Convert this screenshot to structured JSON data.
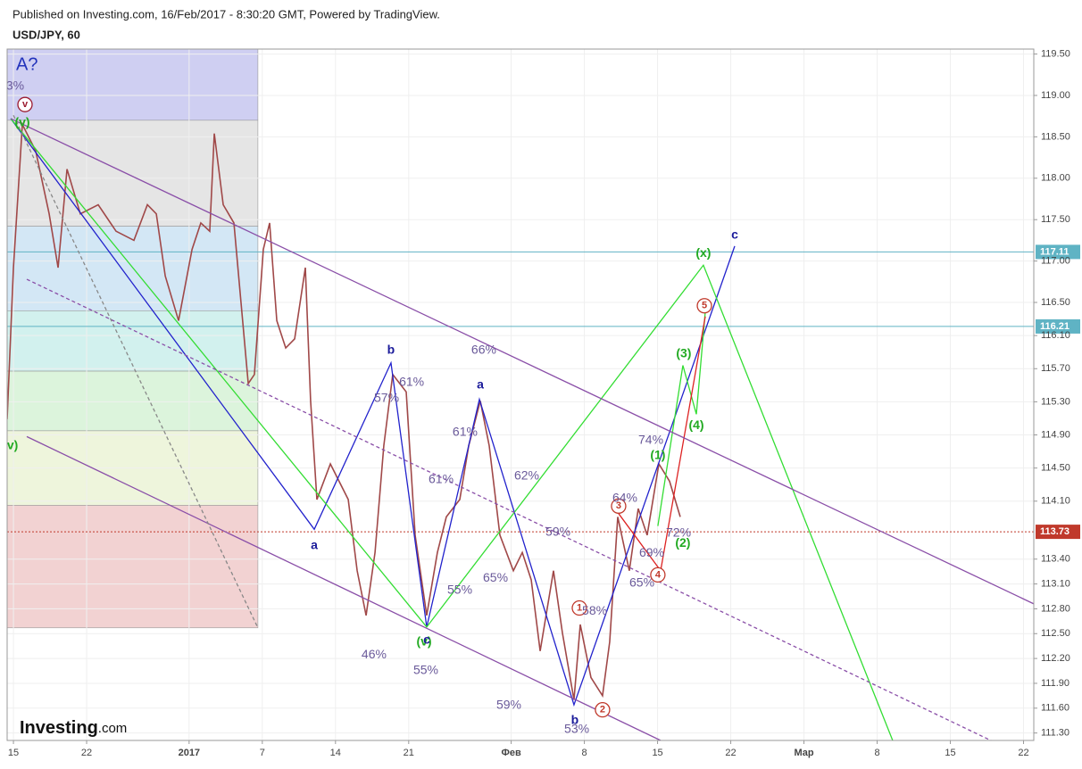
{
  "header": {
    "published": "Published on Investing.com, 16/Feb/2017 - 8:30:20 GMT, Powered by TradingView.",
    "symbol": "USD/JPY, 60"
  },
  "logo": {
    "name": "Investing",
    "suffix": ".com"
  },
  "chart_data": {
    "type": "line",
    "color": "#a04848",
    "grid": true,
    "xlim": [
      -0.43,
      69.7
    ],
    "ylim": [
      111.21,
      119.56
    ],
    "xticks": [
      {
        "value": 0,
        "label": "15"
      },
      {
        "value": 5,
        "label": "22"
      },
      {
        "value": 12,
        "label": "2017"
      },
      {
        "value": 17,
        "label": "7"
      },
      {
        "value": 22,
        "label": "14"
      },
      {
        "value": 27,
        "label": "21"
      },
      {
        "value": 34,
        "label": "Фев"
      },
      {
        "value": 39,
        "label": "8"
      },
      {
        "value": 44,
        "label": "15"
      },
      {
        "value": 49,
        "label": "22"
      },
      {
        "value": 54,
        "label": "Мар"
      },
      {
        "value": 59,
        "label": "8"
      },
      {
        "value": 64,
        "label": "15"
      },
      {
        "value": 69,
        "label": "22"
      }
    ],
    "yticks": [
      {
        "value": 111.3,
        "label": "111.30"
      },
      {
        "value": 111.6,
        "label": "111.60"
      },
      {
        "value": 111.9,
        "label": "111.90"
      },
      {
        "value": 112.2,
        "label": "112.20"
      },
      {
        "value": 112.5,
        "label": "112.50"
      },
      {
        "value": 112.8,
        "label": "112.80"
      },
      {
        "value": 113.1,
        "label": "113.10"
      },
      {
        "value": 113.4,
        "label": "113.40"
      },
      {
        "value": 114.1,
        "label": "114.10"
      },
      {
        "value": 114.5,
        "label": "114.50"
      },
      {
        "value": 114.9,
        "label": "114.90"
      },
      {
        "value": 115.3,
        "label": "115.30"
      },
      {
        "value": 115.7,
        "label": "115.70"
      },
      {
        "value": 116.1,
        "label": "116.10"
      },
      {
        "value": 116.5,
        "label": "116.50"
      },
      {
        "value": 117,
        "label": "117.00"
      },
      {
        "value": 117.5,
        "label": "117.50"
      },
      {
        "value": 118,
        "label": "118.00"
      },
      {
        "value": 118.5,
        "label": "118.50"
      },
      {
        "value": 119,
        "label": "119.00"
      },
      {
        "value": 119.5,
        "label": "119.50"
      }
    ],
    "price_lines": [
      {
        "value": 117.11,
        "color": "#5fb3c4"
      },
      {
        "value": 116.21,
        "color": "#5fb3c4"
      },
      {
        "value": 113.73,
        "color": "#c0392b"
      }
    ],
    "x": [
      -0.43,
      0,
      0.61,
      1.52,
      2.44,
      3.05,
      3.66,
      4.57,
      5.79,
      7.01,
      8.23,
      9.15,
      9.76,
      10.37,
      11.28,
      12.2,
      12.8,
      13.41,
      13.72,
      14.33,
      15.06,
      15.55,
      16.04,
      16.46,
      17.07,
      17.5,
      17.99,
      18.6,
      19.21,
      19.94,
      20.3,
      20.73,
      21.65,
      22.87,
      23.48,
      24.09,
      24.7,
      25.3,
      25.91,
      26.83,
      27.44,
      28.23,
      28.96,
      29.57,
      30.49,
      31.1,
      31.89,
      32.5,
      33.23,
      34.15,
      34.76,
      35.37,
      35.98,
      36.89,
      37.5,
      38.29,
      38.72,
      39.45,
      40.24,
      40.73,
      41.28,
      42.07,
      42.68,
      43.29,
      44.09,
      44.82,
      45.55
    ],
    "values": [
      115.09,
      116.92,
      118.65,
      118.33,
      117.57,
      116.92,
      118.11,
      117.57,
      117.68,
      117.36,
      117.25,
      117.68,
      117.57,
      116.82,
      116.28,
      117.14,
      117.46,
      117.36,
      118.54,
      117.68,
      117.46,
      116.49,
      115.52,
      115.63,
      117.14,
      117.46,
      116.28,
      115.95,
      116.06,
      116.92,
      115.31,
      114.12,
      114.55,
      114.12,
      113.26,
      112.72,
      113.48,
      114.77,
      115.63,
      115.42,
      113.69,
      112.72,
      113.48,
      113.91,
      114.12,
      114.77,
      115.31,
      114.77,
      113.69,
      113.26,
      113.48,
      113.15,
      112.29,
      113.26,
      112.51,
      111.7,
      112.61,
      111.97,
      111.75,
      112.4,
      113.91,
      113.26,
      114.01,
      113.69,
      114.55,
      114.34,
      113.91
    ],
    "zone_x": [
      -0.43,
      16.7
    ],
    "zone_label": "A?",
    "zones": [
      {
        "from": 118.7,
        "to": 119.56,
        "color": "#cfcff2"
      },
      {
        "from": 117.42,
        "to": 118.7,
        "color": "#e5e5e5"
      },
      {
        "from": 116.4,
        "to": 117.42,
        "color": "#d3e7f5"
      },
      {
        "from": 115.67,
        "to": 116.4,
        "color": "#d2f1ee"
      },
      {
        "from": 114.95,
        "to": 115.67,
        "color": "#dcf4dc"
      },
      {
        "from": 114.05,
        "to": 114.95,
        "color": "#eef5dc"
      },
      {
        "from": 112.57,
        "to": 114.05,
        "color": "#f2d2d2"
      }
    ],
    "lines": [
      {
        "color": "#2222cc",
        "dash": false,
        "x": [
          -0.18,
          20.55,
          25.79,
          28.23,
          31.83,
          38.29,
          49.27
        ],
        "y": [
          118.72,
          113.76,
          115.77,
          112.58,
          115.33,
          111.64,
          117.18
        ]
      },
      {
        "color": "#33dd33",
        "dash": false,
        "x": [
          -0.18,
          28.23,
          47.13,
          60.06
        ],
        "y": [
          118.72,
          112.58,
          116.95,
          111.21
        ]
      },
      {
        "color": "#33dd33",
        "dash": false,
        "x": [
          44.02,
          45.73,
          46.65,
          47.26
        ],
        "y": [
          113.8,
          115.74,
          115.15,
          116.39
        ]
      },
      {
        "color": "#dd2222",
        "dash": false,
        "x": [
          41.34,
          44.21,
          47.26
        ],
        "y": [
          113.95,
          113.26,
          116.33
        ]
      },
      {
        "color": "#8a4fa8",
        "dash": false,
        "x": [
          -0.18,
          69.7
        ],
        "y": [
          118.72,
          112.86
        ]
      },
      {
        "color": "#8a4fa8",
        "dash": false,
        "x": [
          0.91,
          44.21
        ],
        "y": [
          114.88,
          111.21
        ]
      },
      {
        "color": "#8a4fa8",
        "dash": true,
        "x": [
          0.91,
          66.77
        ],
        "y": [
          116.78,
          111.21
        ]
      },
      {
        "color": "#888888",
        "dash": true,
        "x": [
          0,
          16.7
        ],
        "y": [
          118.76,
          112.57
        ]
      }
    ],
    "annotations": [
      {
        "text": "3%",
        "x": 0.12,
        "y": 119.11,
        "color": "#6a5a9a",
        "circled": false
      },
      {
        "text": "v",
        "x": 0.79,
        "y": 118.89,
        "color": "#9b1b30",
        "circled": true
      },
      {
        "text": "(v)",
        "x": 0.61,
        "y": 118.67,
        "color": "#22aa22",
        "circled": false
      },
      {
        "text": "v)",
        "x": -0.06,
        "y": 114.77,
        "color": "#22aa22",
        "circled": false
      },
      {
        "text": "b",
        "x": 25.79,
        "y": 115.92,
        "color": "#1a1a9a",
        "circled": false
      },
      {
        "text": "61%",
        "x": 27.2,
        "y": 115.53,
        "color": "#6a5a9a",
        "circled": false
      },
      {
        "text": "57%",
        "x": 25.49,
        "y": 115.34,
        "color": "#6a5a9a",
        "circled": false
      },
      {
        "text": "66%",
        "x": 32.13,
        "y": 115.92,
        "color": "#6a5a9a",
        "circled": false
      },
      {
        "text": "a",
        "x": 31.89,
        "y": 115.5,
        "color": "#1a1a9a",
        "circled": false
      },
      {
        "text": "a",
        "x": 20.55,
        "y": 113.56,
        "color": "#1a1a9a",
        "circled": false
      },
      {
        "text": "61%",
        "x": 30.85,
        "y": 114.93,
        "color": "#6a5a9a",
        "circled": false
      },
      {
        "text": "61%",
        "x": 29.21,
        "y": 114.36,
        "color": "#6a5a9a",
        "circled": false
      },
      {
        "text": "62%",
        "x": 35.06,
        "y": 114.4,
        "color": "#6a5a9a",
        "circled": false
      },
      {
        "text": "59%",
        "x": 37.2,
        "y": 113.72,
        "color": "#6a5a9a",
        "circled": false
      },
      {
        "text": "65%",
        "x": 32.93,
        "y": 113.17,
        "color": "#6a5a9a",
        "circled": false
      },
      {
        "text": "55%",
        "x": 30.49,
        "y": 113.02,
        "color": "#6a5a9a",
        "circled": false
      },
      {
        "text": "(v)",
        "x": 28.05,
        "y": 112.4,
        "color": "#22aa22",
        "circled": false
      },
      {
        "text": "c",
        "x": 28.23,
        "y": 112.42,
        "color": "#1a1a9a",
        "circled": false
      },
      {
        "text": "46%",
        "x": 24.63,
        "y": 112.24,
        "color": "#6a5a9a",
        "circled": false
      },
      {
        "text": "55%",
        "x": 28.17,
        "y": 112.05,
        "color": "#6a5a9a",
        "circled": false
      },
      {
        "text": "59%",
        "x": 33.84,
        "y": 111.63,
        "color": "#6a5a9a",
        "circled": false
      },
      {
        "text": "b",
        "x": 38.35,
        "y": 111.45,
        "color": "#1a1a9a",
        "circled": false
      },
      {
        "text": "53%",
        "x": 38.48,
        "y": 111.34,
        "color": "#6a5a9a",
        "circled": false
      },
      {
        "text": "2",
        "x": 40.24,
        "y": 111.58,
        "color": "#c0392b",
        "circled": true
      },
      {
        "text": "1",
        "x": 38.66,
        "y": 112.81,
        "color": "#c0392b",
        "circled": true
      },
      {
        "text": "58%",
        "x": 39.7,
        "y": 112.77,
        "color": "#6a5a9a",
        "circled": false
      },
      {
        "text": "3",
        "x": 41.34,
        "y": 114.04,
        "color": "#c0392b",
        "circled": true
      },
      {
        "text": "64%",
        "x": 41.77,
        "y": 114.13,
        "color": "#6a5a9a",
        "circled": false
      },
      {
        "text": "69%",
        "x": 43.6,
        "y": 113.47,
        "color": "#6a5a9a",
        "circled": false
      },
      {
        "text": "65%",
        "x": 42.93,
        "y": 113.11,
        "color": "#6a5a9a",
        "circled": false
      },
      {
        "text": "4",
        "x": 44.02,
        "y": 113.21,
        "color": "#c0392b",
        "circled": true
      },
      {
        "text": "74%",
        "x": 43.54,
        "y": 114.83,
        "color": "#6a5a9a",
        "circled": false
      },
      {
        "text": "(1)",
        "x": 44.02,
        "y": 114.65,
        "color": "#22aa22",
        "circled": false
      },
      {
        "text": "72%",
        "x": 45.43,
        "y": 113.71,
        "color": "#6a5a9a",
        "circled": false
      },
      {
        "text": "(2)",
        "x": 45.73,
        "y": 113.59,
        "color": "#22aa22",
        "circled": false
      },
      {
        "text": "(3)",
        "x": 45.79,
        "y": 115.88,
        "color": "#22aa22",
        "circled": false
      },
      {
        "text": "(4)",
        "x": 46.65,
        "y": 115.01,
        "color": "#22aa22",
        "circled": false
      },
      {
        "text": "5",
        "x": 47.2,
        "y": 116.46,
        "color": "#c0392b",
        "circled": true
      },
      {
        "text": "(x)",
        "x": 47.13,
        "y": 117.09,
        "color": "#22aa22",
        "circled": false
      },
      {
        "text": "c",
        "x": 49.27,
        "y": 117.31,
        "color": "#1a1a9a",
        "circled": false
      }
    ]
  }
}
